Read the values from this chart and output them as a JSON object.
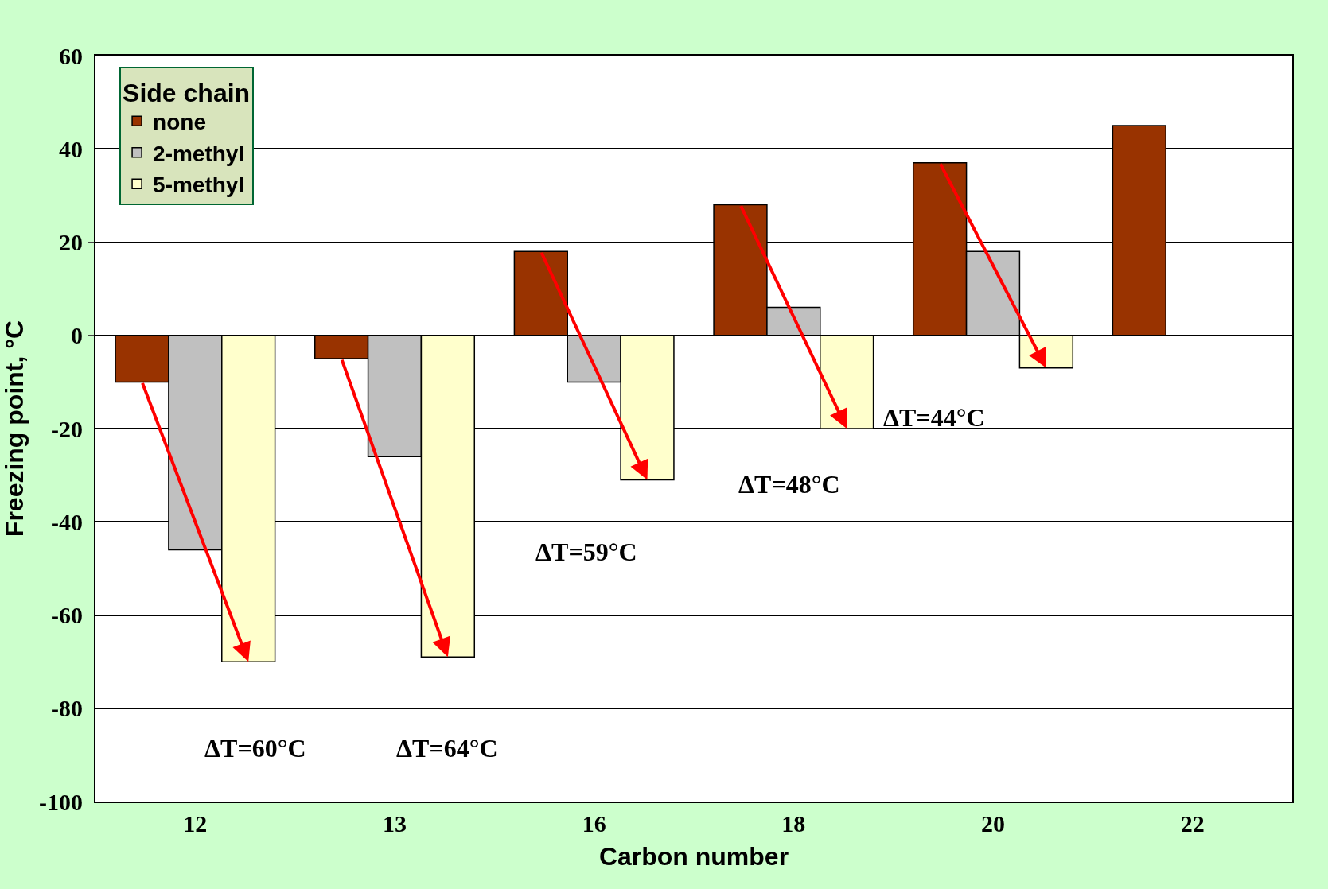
{
  "chart_data": {
    "type": "bar",
    "xlabel": "Carbon number",
    "ylabel": "Freezing point, °C",
    "legend_title": "Side chain",
    "categories": [
      "12",
      "13",
      "16",
      "18",
      "20",
      "22"
    ],
    "series": [
      {
        "name": "none",
        "color": "#993300",
        "values": [
          -10,
          -5,
          18,
          28,
          37,
          45
        ]
      },
      {
        "name": "2-methyl",
        "color": "#c0c0c0",
        "values": [
          -46,
          -26,
          -10,
          6,
          18,
          null
        ]
      },
      {
        "name": "5-methyl",
        "color": "#ffffcc",
        "values": [
          -70,
          -69,
          -31,
          -20,
          -7,
          null
        ]
      }
    ],
    "ylim": [
      -100,
      60
    ],
    "yticks": [
      -100,
      -80,
      -60,
      -40,
      -20,
      0,
      20,
      40,
      60
    ],
    "grid": "y",
    "legend": "top left",
    "annotations": [
      "ΔT=60°C",
      "ΔT=64°C",
      "ΔT=59°C",
      "ΔT=48°C",
      "ΔT=44°C"
    ]
  }
}
